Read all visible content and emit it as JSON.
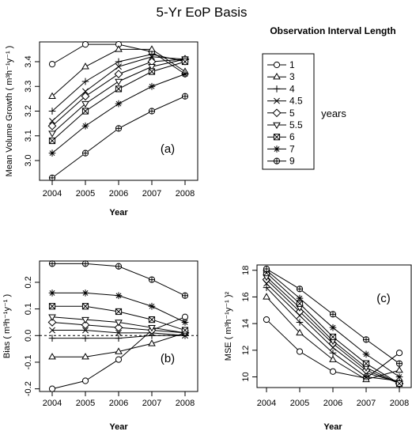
{
  "main_title": "5-Yr EoP Basis",
  "legend": {
    "title": "Observation Interval Length",
    "unit_label": "years",
    "entries": [
      "1",
      "3",
      "4",
      "4.5",
      "5",
      "5.5",
      "6",
      "7",
      "9"
    ]
  },
  "chart_data": [
    {
      "type": "line",
      "panel_label": "(a)",
      "xlabel": "Year",
      "ylabel": "Mean Volume Growth",
      "ylabel_unit": "( m³h⁻¹y⁻¹ )",
      "x": [
        2004,
        2005,
        2006,
        2007,
        2008
      ],
      "ylim": [
        2.92,
        3.48
      ],
      "yticks": [
        3.0,
        3.1,
        3.2,
        3.3,
        3.4
      ],
      "grid": false,
      "series": [
        {
          "name": "1",
          "marker": "circle",
          "values": [
            3.39,
            3.47,
            3.47,
            3.44,
            3.35
          ]
        },
        {
          "name": "3",
          "marker": "triangle",
          "values": [
            3.26,
            3.38,
            3.45,
            3.45,
            3.36
          ]
        },
        {
          "name": "4",
          "marker": "plus",
          "values": [
            3.2,
            3.32,
            3.4,
            3.43,
            3.4
          ]
        },
        {
          "name": "4.5",
          "marker": "x",
          "values": [
            3.16,
            3.28,
            3.38,
            3.42,
            3.41
          ]
        },
        {
          "name": "5",
          "marker": "diamond",
          "values": [
            3.14,
            3.26,
            3.35,
            3.4,
            3.41
          ]
        },
        {
          "name": "5.5",
          "marker": "triangle-down",
          "values": [
            3.11,
            3.23,
            3.32,
            3.38,
            3.41
          ]
        },
        {
          "name": "6",
          "marker": "square-x",
          "values": [
            3.08,
            3.2,
            3.29,
            3.36,
            3.4
          ]
        },
        {
          "name": "7",
          "marker": "asterisk",
          "values": [
            3.03,
            3.14,
            3.23,
            3.3,
            3.35
          ]
        },
        {
          "name": "9",
          "marker": "circle-plus",
          "values": [
            2.93,
            3.03,
            3.13,
            3.2,
            3.26
          ]
        }
      ]
    },
    {
      "type": "line",
      "panel_label": "(b)",
      "xlabel": "Year",
      "ylabel": "Bias",
      "ylabel_unit": "( m³h⁻¹y⁻¹ )",
      "x": [
        2004,
        2005,
        2006,
        2007,
        2008
      ],
      "ylim": [
        -0.21,
        0.28
      ],
      "yticks": [
        -0.2,
        -0.1,
        0.0,
        0.1,
        0.2
      ],
      "reference_line": 0,
      "grid": false,
      "series": [
        {
          "name": "1",
          "marker": "circle",
          "values": [
            -0.2,
            -0.17,
            -0.09,
            0.02,
            0.07
          ]
        },
        {
          "name": "3",
          "marker": "triangle",
          "values": [
            -0.08,
            -0.08,
            -0.06,
            -0.03,
            0.01
          ]
        },
        {
          "name": "4",
          "marker": "plus",
          "values": [
            -0.01,
            -0.01,
            -0.01,
            0.0,
            0.0
          ]
        },
        {
          "name": "4.5",
          "marker": "x",
          "values": [
            0.02,
            0.02,
            0.01,
            0.01,
            0.0
          ]
        },
        {
          "name": "5",
          "marker": "diamond",
          "values": [
            0.05,
            0.04,
            0.03,
            0.02,
            0.01
          ]
        },
        {
          "name": "5.5",
          "marker": "triangle-down",
          "values": [
            0.07,
            0.06,
            0.05,
            0.03,
            0.01
          ]
        },
        {
          "name": "6",
          "marker": "square-x",
          "values": [
            0.11,
            0.11,
            0.09,
            0.06,
            0.02
          ]
        },
        {
          "name": "7",
          "marker": "asterisk",
          "values": [
            0.16,
            0.16,
            0.15,
            0.11,
            0.05
          ]
        },
        {
          "name": "9",
          "marker": "circle-plus",
          "values": [
            0.27,
            0.27,
            0.26,
            0.21,
            0.15
          ]
        }
      ]
    },
    {
      "type": "line",
      "panel_label": "(c)",
      "xlabel": "Year",
      "ylabel": "MSE",
      "ylabel_unit": "( m³h⁻¹y⁻¹ )²",
      "x": [
        2004,
        2005,
        2006,
        2007,
        2008
      ],
      "ylim": [
        9.2,
        18.4
      ],
      "yticks": [
        10,
        12,
        14,
        16,
        18
      ],
      "grid": false,
      "series": [
        {
          "name": "1",
          "marker": "circle",
          "values": [
            14.3,
            11.9,
            10.4,
            9.9,
            11.8
          ]
        },
        {
          "name": "3",
          "marker": "triangle",
          "values": [
            16.0,
            13.3,
            11.3,
            9.8,
            10.5
          ]
        },
        {
          "name": "4",
          "marker": "plus",
          "values": [
            16.7,
            14.1,
            11.8,
            10.0,
            9.7
          ]
        },
        {
          "name": "4.5",
          "marker": "x",
          "values": [
            17.0,
            14.6,
            12.2,
            10.3,
            9.6
          ]
        },
        {
          "name": "5",
          "marker": "diamond",
          "values": [
            17.3,
            14.9,
            12.5,
            10.5,
            9.5
          ]
        },
        {
          "name": "5.5",
          "marker": "triangle-down",
          "values": [
            17.5,
            15.2,
            12.7,
            10.7,
            9.5
          ]
        },
        {
          "name": "6",
          "marker": "square-x",
          "values": [
            17.8,
            15.5,
            13.0,
            11.0,
            9.5
          ]
        },
        {
          "name": "7",
          "marker": "asterisk",
          "values": [
            18.0,
            15.9,
            13.7,
            11.7,
            10.0
          ]
        },
        {
          "name": "9",
          "marker": "circle-plus",
          "values": [
            18.1,
            16.6,
            14.7,
            12.8,
            11.0
          ]
        }
      ]
    }
  ]
}
